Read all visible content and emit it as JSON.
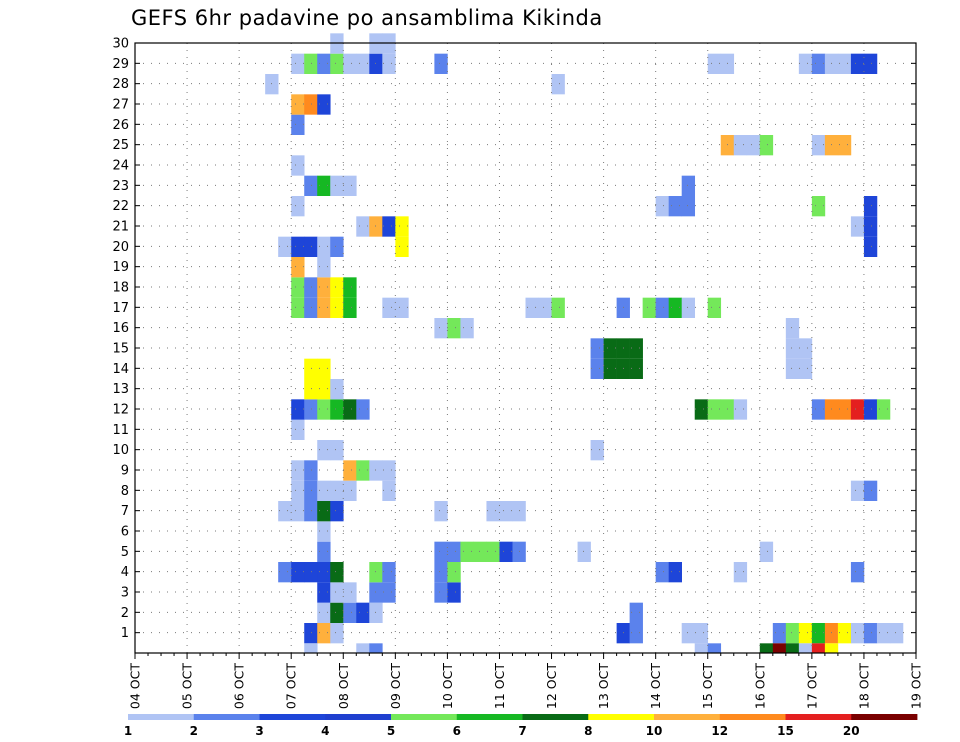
{
  "chart_data": {
    "type": "heatmap",
    "title": "GEFS 6hr padavine po ansamblima Kikinda",
    "xlabel": "",
    "ylabel": "",
    "x_ticks": [
      "04 OCT",
      "05 OCT",
      "06 OCT",
      "07 OCT",
      "08 OCT",
      "09 OCT",
      "10 OCT",
      "11 OCT",
      "12 OCT",
      "13 OCT",
      "14 OCT",
      "15 OCT",
      "16 OCT",
      "17 OCT",
      "18 OCT",
      "19 OCT"
    ],
    "y_ticks": [
      "1",
      "2",
      "3",
      "4",
      "5",
      "6",
      "7",
      "8",
      "9",
      "10",
      "11",
      "12",
      "13",
      "14",
      "15",
      "16",
      "17",
      "18",
      "19",
      "20",
      "21",
      "22",
      "23",
      "24",
      "25",
      "26",
      "27",
      "28",
      "29",
      "30"
    ],
    "ylim": [
      0,
      30
    ],
    "grid": true,
    "colorbar": {
      "labels": [
        "1",
        "2",
        "3",
        "4",
        "5",
        "6",
        "7",
        "8",
        "10",
        "12",
        "15",
        "20"
      ],
      "colors": [
        "#b0c4f4",
        "#5b82ec",
        "#1e45d8",
        "#1f3fcf",
        "#74e85a",
        "#16b823",
        "#096b16",
        "#ffff00",
        "#ffb03c",
        "#ff8a1e",
        "#e41f1f",
        "#7a0000"
      ]
    },
    "cells": [
      {
        "member": 1,
        "step": "10-07 06",
        "class": 3
      },
      {
        "member": 1,
        "step": "10-07 12",
        "class": 9
      },
      {
        "member": 1,
        "step": "10-07 18",
        "class": 1
      },
      {
        "member": 1,
        "step": "10-13 06",
        "class": 3
      },
      {
        "member": 1,
        "step": "10-13 12",
        "class": 2
      },
      {
        "member": 1,
        "step": "10-14 12",
        "class": 1
      },
      {
        "member": 1,
        "step": "10-14 18",
        "class": 1
      },
      {
        "member": 1,
        "step": "10-16 06",
        "class": 2
      },
      {
        "member": 1,
        "step": "10-16 12",
        "class": 5
      },
      {
        "member": 1,
        "step": "10-16 18",
        "class": 8
      },
      {
        "member": 1,
        "step": "10-17 00",
        "class": 6
      },
      {
        "member": 1,
        "step": "10-17 06",
        "class": 10
      },
      {
        "member": 1,
        "step": "10-17 12",
        "class": 8
      },
      {
        "member": 1,
        "step": "10-17 18",
        "class": 1
      },
      {
        "member": 1,
        "step": "10-18 00",
        "class": 2
      },
      {
        "member": 1,
        "step": "10-18 06",
        "class": 1
      },
      {
        "member": 1,
        "step": "10-18 12",
        "class": 1
      },
      {
        "member": 2,
        "step": "10-07 12",
        "class": 1
      },
      {
        "member": 2,
        "step": "10-07 18",
        "class": 7
      },
      {
        "member": 2,
        "step": "10-08 00",
        "class": 2
      },
      {
        "member": 2,
        "step": "10-08 06",
        "class": 3
      },
      {
        "member": 2,
        "step": "10-08 12",
        "class": 1
      },
      {
        "member": 2,
        "step": "10-13 12",
        "class": 2
      },
      {
        "member": 3,
        "step": "10-07 12",
        "class": 3
      },
      {
        "member": 3,
        "step": "10-07 18",
        "class": 1
      },
      {
        "member": 3,
        "step": "10-08 00",
        "class": 1
      },
      {
        "member": 3,
        "step": "10-08 12",
        "class": 2
      },
      {
        "member": 3,
        "step": "10-08 18",
        "class": 2
      },
      {
        "member": 3,
        "step": "10-09 18",
        "class": 2
      },
      {
        "member": 3,
        "step": "10-10 00",
        "class": 3
      },
      {
        "member": 4,
        "step": "10-06 18",
        "class": 2
      },
      {
        "member": 4,
        "step": "10-07 00",
        "class": 3
      },
      {
        "member": 4,
        "step": "10-07 06",
        "class": 3
      },
      {
        "member": 4,
        "step": "10-07 12",
        "class": 3
      },
      {
        "member": 4,
        "step": "10-07 18",
        "class": 7
      },
      {
        "member": 4,
        "step": "10-08 12",
        "class": 5
      },
      {
        "member": 4,
        "step": "10-08 18",
        "class": 2
      },
      {
        "member": 4,
        "step": "10-09 18",
        "class": 2
      },
      {
        "member": 4,
        "step": "10-10 00",
        "class": 5
      },
      {
        "member": 4,
        "step": "10-14 00",
        "class": 2
      },
      {
        "member": 4,
        "step": "10-14 06",
        "class": 3
      },
      {
        "member": 4,
        "step": "10-15 12",
        "class": 1
      },
      {
        "member": 4,
        "step": "10-17 18",
        "class": 2
      },
      {
        "member": 5,
        "step": "10-07 12",
        "class": 2
      },
      {
        "member": 5,
        "step": "10-09 18",
        "class": 2
      },
      {
        "member": 5,
        "step": "10-10 00",
        "class": 2
      },
      {
        "member": 5,
        "step": "10-10 06",
        "class": 5
      },
      {
        "member": 5,
        "step": "10-10 12",
        "class": 5
      },
      {
        "member": 5,
        "step": "10-10 18",
        "class": 5
      },
      {
        "member": 5,
        "step": "10-11 00",
        "class": 3
      },
      {
        "member": 5,
        "step": "10-11 06",
        "class": 2
      },
      {
        "member": 5,
        "step": "10-12 12",
        "class": 1
      },
      {
        "member": 5,
        "step": "10-16 00",
        "class": 1
      },
      {
        "member": 6,
        "step": "10-07 12",
        "class": 1
      },
      {
        "member": 7,
        "step": "10-06 18",
        "class": 1
      },
      {
        "member": 7,
        "step": "10-07 00",
        "class": 1
      },
      {
        "member": 7,
        "step": "10-07 06",
        "class": 2
      },
      {
        "member": 7,
        "step": "10-07 12",
        "class": 7
      },
      {
        "member": 7,
        "step": "10-07 18",
        "class": 3
      },
      {
        "member": 7,
        "step": "10-09 18",
        "class": 1
      },
      {
        "member": 7,
        "step": "10-10 18",
        "class": 1
      },
      {
        "member": 7,
        "step": "10-11 00",
        "class": 1
      },
      {
        "member": 7,
        "step": "10-11 06",
        "class": 1
      },
      {
        "member": 8,
        "step": "10-07 00",
        "class": 1
      },
      {
        "member": 8,
        "step": "10-07 06",
        "class": 2
      },
      {
        "member": 8,
        "step": "10-07 12",
        "class": 1
      },
      {
        "member": 8,
        "step": "10-07 18",
        "class": 1
      },
      {
        "member": 8,
        "step": "10-08 00",
        "class": 1
      },
      {
        "member": 8,
        "step": "10-08 18",
        "class": 1
      },
      {
        "member": 8,
        "step": "10-17 18",
        "class": 1
      },
      {
        "member": 8,
        "step": "10-18 00",
        "class": 2
      },
      {
        "member": 9,
        "step": "10-07 00",
        "class": 1
      },
      {
        "member": 9,
        "step": "10-07 06",
        "class": 2
      },
      {
        "member": 9,
        "step": "10-08 00",
        "class": 9
      },
      {
        "member": 9,
        "step": "10-08 06",
        "class": 5
      },
      {
        "member": 9,
        "step": "10-08 12",
        "class": 1
      },
      {
        "member": 9,
        "step": "10-08 18",
        "class": 1
      },
      {
        "member": 10,
        "step": "10-07 12",
        "class": 1
      },
      {
        "member": 10,
        "step": "10-07 18",
        "class": 1
      },
      {
        "member": 10,
        "step": "10-12 18",
        "class": 1
      },
      {
        "member": 11,
        "step": "10-07 00",
        "class": 1
      },
      {
        "member": 12,
        "step": "10-07 00",
        "class": 3
      },
      {
        "member": 12,
        "step": "10-07 06",
        "class": 2
      },
      {
        "member": 12,
        "step": "10-07 12",
        "class": 5
      },
      {
        "member": 12,
        "step": "10-07 18",
        "class": 6
      },
      {
        "member": 12,
        "step": "10-08 00",
        "class": 7
      },
      {
        "member": 12,
        "step": "10-08 06",
        "class": 2
      },
      {
        "member": 12,
        "step": "10-14 18",
        "class": 7
      },
      {
        "member": 12,
        "step": "10-15 00",
        "class": 5
      },
      {
        "member": 12,
        "step": "10-15 06",
        "class": 5
      },
      {
        "member": 12,
        "step": "10-15 12",
        "class": 1
      },
      {
        "member": 12,
        "step": "10-17 00",
        "class": 2
      },
      {
        "member": 12,
        "step": "10-17 06",
        "class": 10
      },
      {
        "member": 12,
        "step": "10-17 12",
        "class": 10
      },
      {
        "member": 12,
        "step": "10-17 18",
        "class": 11
      },
      {
        "member": 12,
        "step": "10-18 00",
        "class": 3
      },
      {
        "member": 12,
        "step": "10-18 06",
        "class": 5
      },
      {
        "member": 13,
        "step": "10-07 06",
        "class": 8
      },
      {
        "member": 13,
        "step": "10-07 12",
        "class": 8
      },
      {
        "member": 13,
        "step": "10-07 18",
        "class": 1
      },
      {
        "member": 14,
        "step": "10-07 06",
        "class": 8
      },
      {
        "member": 14,
        "step": "10-07 12",
        "class": 8
      },
      {
        "member": 14,
        "step": "10-12 18",
        "class": 2
      },
      {
        "member": 14,
        "step": "10-13 00",
        "class": 7
      },
      {
        "member": 14,
        "step": "10-13 06",
        "class": 7
      },
      {
        "member": 14,
        "step": "10-13 12",
        "class": 7
      },
      {
        "member": 14,
        "step": "10-16 12",
        "class": 1
      },
      {
        "member": 14,
        "step": "10-16 18",
        "class": 1
      },
      {
        "member": 15,
        "step": "10-12 18",
        "class": 2
      },
      {
        "member": 15,
        "step": "10-13 00",
        "class": 7
      },
      {
        "member": 15,
        "step": "10-13 06",
        "class": 7
      },
      {
        "member": 15,
        "step": "10-13 12",
        "class": 7
      },
      {
        "member": 15,
        "step": "10-16 12",
        "class": 1
      },
      {
        "member": 15,
        "step": "10-16 18",
        "class": 1
      },
      {
        "member": 16,
        "step": "10-09 18",
        "class": 1
      },
      {
        "member": 16,
        "step": "10-10 00",
        "class": 5
      },
      {
        "member": 16,
        "step": "10-10 06",
        "class": 1
      },
      {
        "member": 16,
        "step": "10-16 12",
        "class": 1
      },
      {
        "member": 17,
        "step": "10-07 00",
        "class": 5
      },
      {
        "member": 17,
        "step": "10-07 06",
        "class": 2
      },
      {
        "member": 17,
        "step": "10-07 12",
        "class": 9
      },
      {
        "member": 17,
        "step": "10-07 18",
        "class": 8
      },
      {
        "member": 17,
        "step": "10-08 00",
        "class": 6
      },
      {
        "member": 17,
        "step": "10-08 18",
        "class": 1
      },
      {
        "member": 17,
        "step": "10-09 00",
        "class": 1
      },
      {
        "member": 17,
        "step": "10-11 12",
        "class": 1
      },
      {
        "member": 17,
        "step": "10-11 18",
        "class": 1
      },
      {
        "member": 17,
        "step": "10-12 00",
        "class": 5
      },
      {
        "member": 17,
        "step": "10-13 06",
        "class": 2
      },
      {
        "member": 17,
        "step": "10-13 18",
        "class": 5
      },
      {
        "member": 17,
        "step": "10-14 00",
        "class": 2
      },
      {
        "member": 17,
        "step": "10-14 06",
        "class": 6
      },
      {
        "member": 17,
        "step": "10-14 12",
        "class": 1
      },
      {
        "member": 17,
        "step": "10-15 00",
        "class": 5
      },
      {
        "member": 18,
        "step": "10-07 00",
        "class": 5
      },
      {
        "member": 18,
        "step": "10-07 06",
        "class": 2
      },
      {
        "member": 18,
        "step": "10-07 12",
        "class": 9
      },
      {
        "member": 18,
        "step": "10-07 18",
        "class": 8
      },
      {
        "member": 18,
        "step": "10-08 00",
        "class": 6
      },
      {
        "member": 19,
        "step": "10-07 00",
        "class": 9
      },
      {
        "member": 19,
        "step": "10-07 12",
        "class": 1
      },
      {
        "member": 20,
        "step": "10-06 18",
        "class": 1
      },
      {
        "member": 20,
        "step": "10-07 00",
        "class": 3
      },
      {
        "member": 20,
        "step": "10-07 06",
        "class": 3
      },
      {
        "member": 20,
        "step": "10-07 12",
        "class": 1
      },
      {
        "member": 20,
        "step": "10-07 18",
        "class": 2
      },
      {
        "member": 20,
        "step": "10-09 00",
        "class": 8
      },
      {
        "member": 20,
        "step": "10-18 00",
        "class": 3
      },
      {
        "member": 21,
        "step": "10-08 06",
        "class": 1
      },
      {
        "member": 21,
        "step": "10-08 12",
        "class": 9
      },
      {
        "member": 21,
        "step": "10-08 18",
        "class": 3
      },
      {
        "member": 21,
        "step": "10-09 00",
        "class": 8
      },
      {
        "member": 21,
        "step": "10-17 18",
        "class": 1
      },
      {
        "member": 21,
        "step": "10-18 00",
        "class": 3
      },
      {
        "member": 22,
        "step": "10-07 00",
        "class": 1
      },
      {
        "member": 22,
        "step": "10-14 00",
        "class": 1
      },
      {
        "member": 22,
        "step": "10-14 06",
        "class": 2
      },
      {
        "member": 22,
        "step": "10-14 12",
        "class": 2
      },
      {
        "member": 22,
        "step": "10-17 00",
        "class": 5
      },
      {
        "member": 22,
        "step": "10-18 00",
        "class": 3
      },
      {
        "member": 23,
        "step": "10-07 06",
        "class": 2
      },
      {
        "member": 23,
        "step": "10-07 12",
        "class": 6
      },
      {
        "member": 23,
        "step": "10-07 18",
        "class": 1
      },
      {
        "member": 23,
        "step": "10-08 00",
        "class": 1
      },
      {
        "member": 23,
        "step": "10-14 12",
        "class": 2
      },
      {
        "member": 24,
        "step": "10-07 00",
        "class": 1
      },
      {
        "member": 25,
        "step": "10-15 06",
        "class": 9
      },
      {
        "member": 25,
        "step": "10-15 12",
        "class": 1
      },
      {
        "member": 25,
        "step": "10-15 18",
        "class": 1
      },
      {
        "member": 25,
        "step": "10-16 00",
        "class": 5
      },
      {
        "member": 25,
        "step": "10-17 00",
        "class": 1
      },
      {
        "member": 25,
        "step": "10-17 06",
        "class": 9
      },
      {
        "member": 25,
        "step": "10-17 12",
        "class": 9
      },
      {
        "member": 26,
        "step": "10-07 00",
        "class": 2
      },
      {
        "member": 27,
        "step": "10-07 00",
        "class": 9
      },
      {
        "member": 27,
        "step": "10-07 06",
        "class": 10
      },
      {
        "member": 27,
        "step": "10-07 12",
        "class": 3
      },
      {
        "member": 28,
        "step": "10-06 12",
        "class": 1
      },
      {
        "member": 28,
        "step": "10-12 00",
        "class": 1
      },
      {
        "member": 29,
        "step": "10-07 00",
        "class": 1
      },
      {
        "member": 29,
        "step": "10-07 06",
        "class": 5
      },
      {
        "member": 29,
        "step": "10-07 12",
        "class": 2
      },
      {
        "member": 29,
        "step": "10-07 18",
        "class": 5
      },
      {
        "member": 29,
        "step": "10-08 00",
        "class": 1
      },
      {
        "member": 29,
        "step": "10-08 06",
        "class": 1
      },
      {
        "member": 29,
        "step": "10-08 12",
        "class": 3
      },
      {
        "member": 29,
        "step": "10-08 18",
        "class": 1
      },
      {
        "member": 29,
        "step": "10-09 18",
        "class": 2
      },
      {
        "member": 29,
        "step": "10-15 00",
        "class": 1
      },
      {
        "member": 29,
        "step": "10-15 06",
        "class": 1
      },
      {
        "member": 29,
        "step": "10-16 18",
        "class": 1
      },
      {
        "member": 29,
        "step": "10-17 00",
        "class": 2
      },
      {
        "member": 29,
        "step": "10-17 06",
        "class": 1
      },
      {
        "member": 29,
        "step": "10-17 12",
        "class": 1
      },
      {
        "member": 29,
        "step": "10-17 18",
        "class": 3
      },
      {
        "member": 29,
        "step": "10-18 00",
        "class": 3
      },
      {
        "member": 30,
        "step": "10-07 18",
        "class": 1
      },
      {
        "member": 30,
        "step": "10-08 12",
        "class": 1
      },
      {
        "member": 30,
        "step": "10-08 18",
        "class": 1
      }
    ],
    "below_axis_cells": [
      {
        "step": "10-07 06",
        "class": 1
      },
      {
        "step": "10-08 06",
        "class": 1
      },
      {
        "step": "10-08 12",
        "class": 2
      },
      {
        "step": "10-14 18",
        "class": 1
      },
      {
        "step": "10-15 00",
        "class": 2
      },
      {
        "step": "10-16 00",
        "class": 7
      },
      {
        "step": "10-16 06",
        "class": 12
      },
      {
        "step": "10-16 12",
        "class": 7
      },
      {
        "step": "10-16 18",
        "class": 1
      },
      {
        "step": "10-17 00",
        "class": 11
      },
      {
        "step": "10-17 06",
        "class": 8
      }
    ]
  }
}
